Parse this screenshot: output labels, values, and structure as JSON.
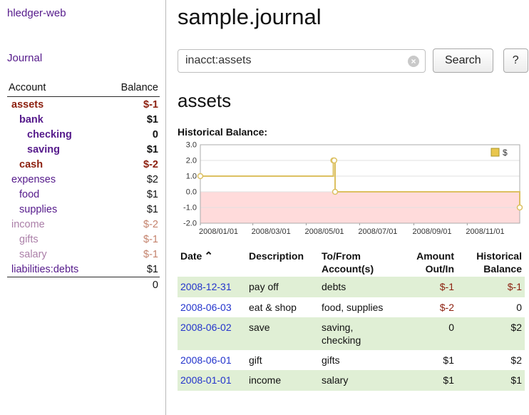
{
  "theme": {
    "link_purple": "#551a8b",
    "date_link_blue": "#2233cc",
    "negative_red": "#8c1f0e",
    "faded_account": "#ab7fa8",
    "faded_negative": "#c4826c",
    "row_shade_green": "#e0efd5"
  },
  "sidebar": {
    "app_title": "hledger-web",
    "journal_link": "Journal",
    "table_header": {
      "account": "Account",
      "balance": "Balance"
    },
    "accounts": [
      {
        "name": "assets",
        "balance": "$-1",
        "indent": 0,
        "name_class": "neg bold",
        "bal_class": "neg bold"
      },
      {
        "name": "bank",
        "balance": "$1",
        "indent": 1,
        "name_class": "link bold",
        "bal_class": "bold"
      },
      {
        "name": "checking",
        "balance": "0",
        "indent": 2,
        "name_class": "link bold",
        "bal_class": "bold"
      },
      {
        "name": "saving",
        "balance": "$1",
        "indent": 2,
        "name_class": "link bold",
        "bal_class": "bold"
      },
      {
        "name": "cash",
        "balance": "$-2",
        "indent": 1,
        "name_class": "neg bold",
        "bal_class": "neg bold"
      },
      {
        "name": "expenses",
        "balance": "$2",
        "indent": 0,
        "name_class": "link",
        "bal_class": ""
      },
      {
        "name": "food",
        "balance": "$1",
        "indent": 1,
        "name_class": "link",
        "bal_class": ""
      },
      {
        "name": "supplies",
        "balance": "$1",
        "indent": 1,
        "name_class": "link",
        "bal_class": ""
      },
      {
        "name": "income",
        "balance": "$-2",
        "indent": 0,
        "name_class": "faded",
        "bal_class": "negfaded"
      },
      {
        "name": "gifts",
        "balance": "$-1",
        "indent": 1,
        "name_class": "faded",
        "bal_class": "negfaded"
      },
      {
        "name": "salary",
        "balance": "$-1",
        "indent": 1,
        "name_class": "faded",
        "bal_class": "negfaded"
      },
      {
        "name": "liabilities:debts",
        "balance": "$1",
        "indent": 0,
        "name_class": "link",
        "bal_class": ""
      }
    ],
    "total": "0"
  },
  "main": {
    "title": "sample.journal",
    "search": {
      "value": "inacct:assets",
      "clear_icon": "×",
      "button_label": "Search",
      "help_label": "?"
    },
    "account_heading": "assets",
    "chart_title": "Historical Balance:"
  },
  "chart_data": {
    "type": "line",
    "step": true,
    "title": "Historical Balance",
    "legend": [
      {
        "label": "$"
      }
    ],
    "ylim": [
      -2,
      3
    ],
    "yticks": [
      "3.0",
      "2.0",
      "1.0",
      "0.0",
      "-1.0",
      "-2.0"
    ],
    "ytick_values": [
      3,
      2,
      1,
      0,
      -1,
      -2
    ],
    "x_range_days": [
      0,
      365
    ],
    "xticks": [
      {
        "label": "2008/01/01",
        "day": 0
      },
      {
        "label": "2008/03/01",
        "day": 60
      },
      {
        "label": "2008/05/01",
        "day": 121
      },
      {
        "label": "2008/07/01",
        "day": 182
      },
      {
        "label": "2008/09/01",
        "day": 244
      },
      {
        "label": "2008/11/01",
        "day": 305
      }
    ],
    "series": [
      {
        "name": "$",
        "points": [
          {
            "date": "2008-01-01",
            "day": 0,
            "value": 1
          },
          {
            "date": "2008-06-01",
            "day": 152,
            "value": 2
          },
          {
            "date": "2008-06-02",
            "day": 153,
            "value": 2
          },
          {
            "date": "2008-06-03",
            "day": 154,
            "value": 0
          },
          {
            "date": "2008-12-31",
            "day": 365,
            "value": -1
          }
        ]
      }
    ],
    "colors": {
      "line": "#dcc061",
      "marker_fill": "#ffffff",
      "negative_fill": "#ffdbdb",
      "grid": "#e2e2e2",
      "plot_border": "#ababab",
      "legend_fill": "#e9c64d",
      "legend_border": "#a8952c"
    }
  },
  "register": {
    "headers": {
      "date": "Date",
      "sort_icon": "⌃",
      "description": "Description",
      "account_lines": [
        "To/From",
        "Account(s)"
      ],
      "amount_lines": [
        "Amount",
        "Out/In"
      ],
      "balance_lines": [
        "Historical",
        "Balance"
      ]
    },
    "rows": [
      {
        "date": "2008-12-31",
        "description": "pay off",
        "accounts": "debts",
        "amount": "$-1",
        "amount_class": "neg",
        "balance": "$-1",
        "balance_class": "neg",
        "shaded": true
      },
      {
        "date": "2008-06-03",
        "description": "eat & shop",
        "accounts": "food, supplies",
        "amount": "$-2",
        "amount_class": "neg",
        "balance": "0",
        "balance_class": "",
        "shaded": false
      },
      {
        "date": "2008-06-02",
        "description": "save",
        "accounts": "saving, checking",
        "amount": "0",
        "amount_class": "",
        "balance": "$2",
        "balance_class": "",
        "shaded": true
      },
      {
        "date": "2008-06-01",
        "description": "gift",
        "accounts": "gifts",
        "amount": "$1",
        "amount_class": "",
        "balance": "$2",
        "balance_class": "",
        "shaded": false
      },
      {
        "date": "2008-01-01",
        "description": "income",
        "accounts": "salary",
        "amount": "$1",
        "amount_class": "",
        "balance": "$1",
        "balance_class": "",
        "shaded": true
      }
    ]
  }
}
